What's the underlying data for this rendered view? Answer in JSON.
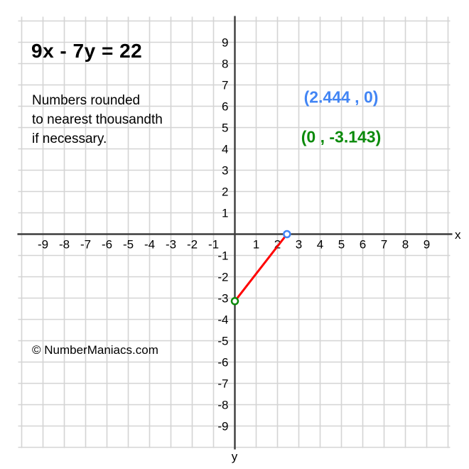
{
  "note": {
    "lines": [
      "Numbers rounded",
      "to nearest thousandth",
      "if necessary."
    ]
  },
  "footer": {
    "watermark": "© NumberManiacs.com"
  },
  "chart_data": {
    "type": "line",
    "title": "9x - 7y = 22",
    "xlabel": "x",
    "ylabel": "y",
    "xlim": [
      -10,
      10
    ],
    "ylim": [
      -10,
      10
    ],
    "grid": true,
    "grid_spacing": 1,
    "x_ticks": [
      -9,
      -8,
      -7,
      -6,
      -5,
      -4,
      -3,
      -2,
      -1,
      1,
      2,
      3,
      4,
      5,
      6,
      7,
      8,
      9
    ],
    "y_ticks": [
      9,
      8,
      7,
      6,
      5,
      4,
      3,
      2,
      1,
      -1,
      -2,
      -3,
      -4,
      -5,
      -6,
      -7,
      -8,
      -9
    ],
    "colors": {
      "grid": "#d4d4d4",
      "axis": "#3d3d3d",
      "line": "#ff0000",
      "x_intercept": "#4285f4",
      "y_intercept": "#0b8a0b",
      "text": "#000000"
    },
    "series": [
      {
        "name": "segment between intercepts of 9x - 7y = 22",
        "color": "#ff0000",
        "points": [
          [
            0,
            -3.143
          ],
          [
            2.444,
            0
          ]
        ]
      }
    ],
    "markers": [
      {
        "name": "x-intercept",
        "x": 2.444,
        "y": 0,
        "label": "(2.444 , 0)",
        "color": "#4285f4"
      },
      {
        "name": "y-intercept",
        "x": 0,
        "y": -3.143,
        "label": "(0 , -3.143)",
        "color": "#0b8a0b"
      }
    ]
  }
}
